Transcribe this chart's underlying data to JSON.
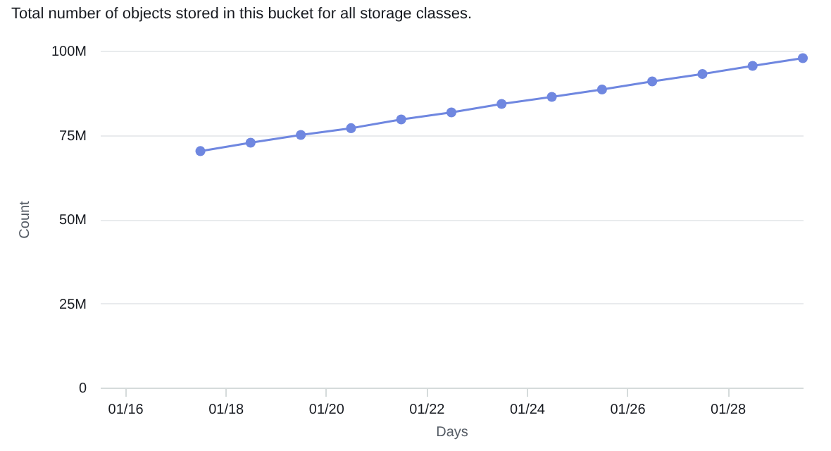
{
  "chart_data": {
    "type": "line",
    "title": "Total number of objects stored in this bucket for all storage classes.",
    "xlabel": "Days",
    "ylabel": "Count",
    "x": [
      "--01-17T12:00",
      "--01-18T12:00",
      "--01-19T12:00",
      "--01-20T12:00",
      "--01-21T12:00",
      "--01-22T12:00",
      "--01-23T12:00",
      "--01-24T12:00",
      "--01-25T12:00",
      "--01-26T12:00",
      "--01-27T12:00",
      "--01-28T12:00",
      "--01-29T12:00"
    ],
    "series": [
      {
        "color": "#6f87e0",
        "values": [
          70200000,
          72700000,
          75000000,
          77000000,
          79600000,
          81700000,
          84200000,
          86300000,
          88500000,
          90900000,
          93100000,
          95500000,
          97800000
        ]
      }
    ],
    "xlim": [
      "--01-15T12:00",
      "--01-29T12:00"
    ],
    "xticks": [
      {
        "value": "--01-16",
        "label": "01/16"
      },
      {
        "value": "--01-18",
        "label": "01/18"
      },
      {
        "value": "--01-20",
        "label": "01/20"
      },
      {
        "value": "--01-22",
        "label": "01/22"
      },
      {
        "value": "--01-24",
        "label": "01/24"
      },
      {
        "value": "--01-26",
        "label": "01/26"
      },
      {
        "value": "--01-28",
        "label": "01/28"
      }
    ],
    "ylim": [
      0,
      100000000
    ],
    "yticks": [
      {
        "value": 0,
        "label": "0"
      },
      {
        "value": 25000000,
        "label": "25M"
      },
      {
        "value": 50000000,
        "label": "50M"
      },
      {
        "value": 75000000,
        "label": "75M"
      },
      {
        "value": 100000000,
        "label": "100M"
      }
    ],
    "grid": "y",
    "marker": "circle",
    "line_style": "solid"
  }
}
